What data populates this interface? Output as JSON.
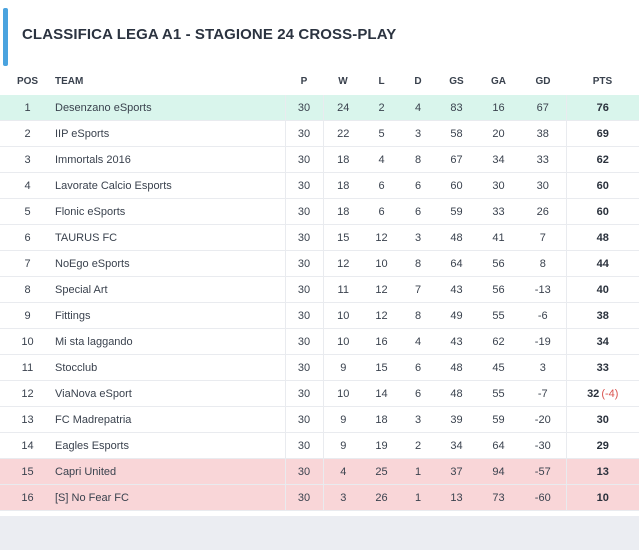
{
  "title": "CLASSIFICA LEGA A1 - STAGIONE 24 CROSS-PLAY",
  "colors": {
    "accent": "#4aa3df",
    "leader_row": "#d9f5ec",
    "relegation_row": "#f9d6d8",
    "penalty": "#d9534f"
  },
  "headers": {
    "pos": "POS",
    "team": "TEAM",
    "p": "P",
    "w": "W",
    "l": "L",
    "d": "D",
    "gs": "GS",
    "ga": "GA",
    "gd": "GD",
    "pts": "PTS"
  },
  "rows": [
    {
      "pos": "1",
      "team": "Desenzano eSports",
      "p": "30",
      "w": "24",
      "l": "2",
      "d": "4",
      "gs": "83",
      "ga": "16",
      "gd": "67",
      "pts": "76",
      "penalty": ""
    },
    {
      "pos": "2",
      "team": "IIP eSports",
      "p": "30",
      "w": "22",
      "l": "5",
      "d": "3",
      "gs": "58",
      "ga": "20",
      "gd": "38",
      "pts": "69",
      "penalty": ""
    },
    {
      "pos": "3",
      "team": "Immortals 2016",
      "p": "30",
      "w": "18",
      "l": "4",
      "d": "8",
      "gs": "67",
      "ga": "34",
      "gd": "33",
      "pts": "62",
      "penalty": ""
    },
    {
      "pos": "4",
      "team": "Lavorate Calcio Esports",
      "p": "30",
      "w": "18",
      "l": "6",
      "d": "6",
      "gs": "60",
      "ga": "30",
      "gd": "30",
      "pts": "60",
      "penalty": ""
    },
    {
      "pos": "5",
      "team": "Flonic eSports",
      "p": "30",
      "w": "18",
      "l": "6",
      "d": "6",
      "gs": "59",
      "ga": "33",
      "gd": "26",
      "pts": "60",
      "penalty": ""
    },
    {
      "pos": "6",
      "team": "TAURUS FC",
      "p": "30",
      "w": "15",
      "l": "12",
      "d": "3",
      "gs": "48",
      "ga": "41",
      "gd": "7",
      "pts": "48",
      "penalty": ""
    },
    {
      "pos": "7",
      "team": "NoEgo eSports",
      "p": "30",
      "w": "12",
      "l": "10",
      "d": "8",
      "gs": "64",
      "ga": "56",
      "gd": "8",
      "pts": "44",
      "penalty": ""
    },
    {
      "pos": "8",
      "team": "Special Art",
      "p": "30",
      "w": "11",
      "l": "12",
      "d": "7",
      "gs": "43",
      "ga": "56",
      "gd": "-13",
      "pts": "40",
      "penalty": ""
    },
    {
      "pos": "9",
      "team": "Fittings",
      "p": "30",
      "w": "10",
      "l": "12",
      "d": "8",
      "gs": "49",
      "ga": "55",
      "gd": "-6",
      "pts": "38",
      "penalty": ""
    },
    {
      "pos": "10",
      "team": "Mi sta laggando",
      "p": "30",
      "w": "10",
      "l": "16",
      "d": "4",
      "gs": "43",
      "ga": "62",
      "gd": "-19",
      "pts": "34",
      "penalty": ""
    },
    {
      "pos": "11",
      "team": "Stocclub",
      "p": "30",
      "w": "9",
      "l": "15",
      "d": "6",
      "gs": "48",
      "ga": "45",
      "gd": "3",
      "pts": "33",
      "penalty": ""
    },
    {
      "pos": "12",
      "team": "ViaNova eSport",
      "p": "30",
      "w": "10",
      "l": "14",
      "d": "6",
      "gs": "48",
      "ga": "55",
      "gd": "-7",
      "pts": "32",
      "penalty": "(-4)"
    },
    {
      "pos": "13",
      "team": "FC Madrepatria",
      "p": "30",
      "w": "9",
      "l": "18",
      "d": "3",
      "gs": "39",
      "ga": "59",
      "gd": "-20",
      "pts": "30",
      "penalty": ""
    },
    {
      "pos": "14",
      "team": "Eagles Esports",
      "p": "30",
      "w": "9",
      "l": "19",
      "d": "2",
      "gs": "34",
      "ga": "64",
      "gd": "-30",
      "pts": "29",
      "penalty": ""
    },
    {
      "pos": "15",
      "team": "Capri United",
      "p": "30",
      "w": "4",
      "l": "25",
      "d": "1",
      "gs": "37",
      "ga": "94",
      "gd": "-57",
      "pts": "13",
      "penalty": ""
    },
    {
      "pos": "16",
      "team": "[S] No Fear FC",
      "p": "30",
      "w": "3",
      "l": "26",
      "d": "1",
      "gs": "13",
      "ga": "73",
      "gd": "-60",
      "pts": "10",
      "penalty": ""
    }
  ],
  "row_status": [
    "leader",
    "",
    "",
    "",
    "",
    "",
    "",
    "",
    "",
    "",
    "",
    "",
    "",
    "",
    "relegated",
    "relegated"
  ]
}
